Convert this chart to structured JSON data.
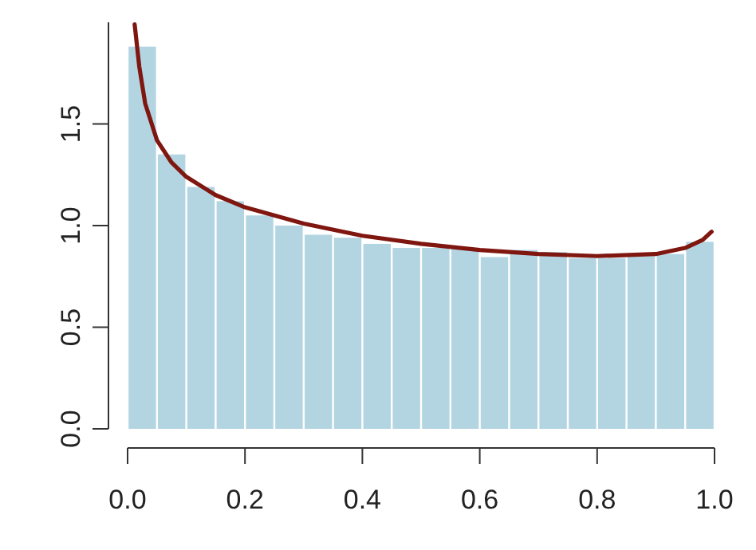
{
  "chart_data": {
    "type": "histogram",
    "bins": [
      0,
      0.05,
      0.1,
      0.15,
      0.2,
      0.25,
      0.3,
      0.35,
      0.4,
      0.45,
      0.5,
      0.55,
      0.6,
      0.65,
      0.7,
      0.75,
      0.8,
      0.85,
      0.9,
      0.95,
      1
    ],
    "values": [
      1.88,
      1.35,
      1.19,
      1.12,
      1.05,
      1.0,
      0.955,
      0.94,
      0.91,
      0.89,
      0.89,
      0.89,
      0.845,
      0.88,
      0.87,
      0.84,
      0.84,
      0.85,
      0.86,
      0.92
    ],
    "color": "#b3d5e2",
    "series": [
      {
        "type": "line",
        "color": "#7f1710",
        "x": [
          0.012,
          0.02,
          0.03,
          0.05,
          0.075,
          0.1,
          0.15,
          0.2,
          0.3,
          0.4,
          0.5,
          0.6,
          0.7,
          0.8,
          0.9,
          0.95,
          0.98,
          0.995
        ],
        "values": [
          1.99,
          1.78,
          1.6,
          1.42,
          1.31,
          1.24,
          1.15,
          1.09,
          1.01,
          0.95,
          0.91,
          0.88,
          0.86,
          0.85,
          0.86,
          0.89,
          0.93,
          0.97
        ]
      }
    ],
    "xlim": [
      0,
      1
    ],
    "xticks": [
      {
        "value": 0,
        "label": "0.0"
      },
      0.2,
      0.4,
      0.6,
      0.8,
      {
        "value": 1,
        "label": "1.0"
      }
    ],
    "ylim": [
      0,
      2
    ],
    "yticks": [
      {
        "value": 0,
        "label": "0.0"
      },
      0.5,
      {
        "value": 1,
        "label": "1.0"
      },
      1.5
    ]
  }
}
